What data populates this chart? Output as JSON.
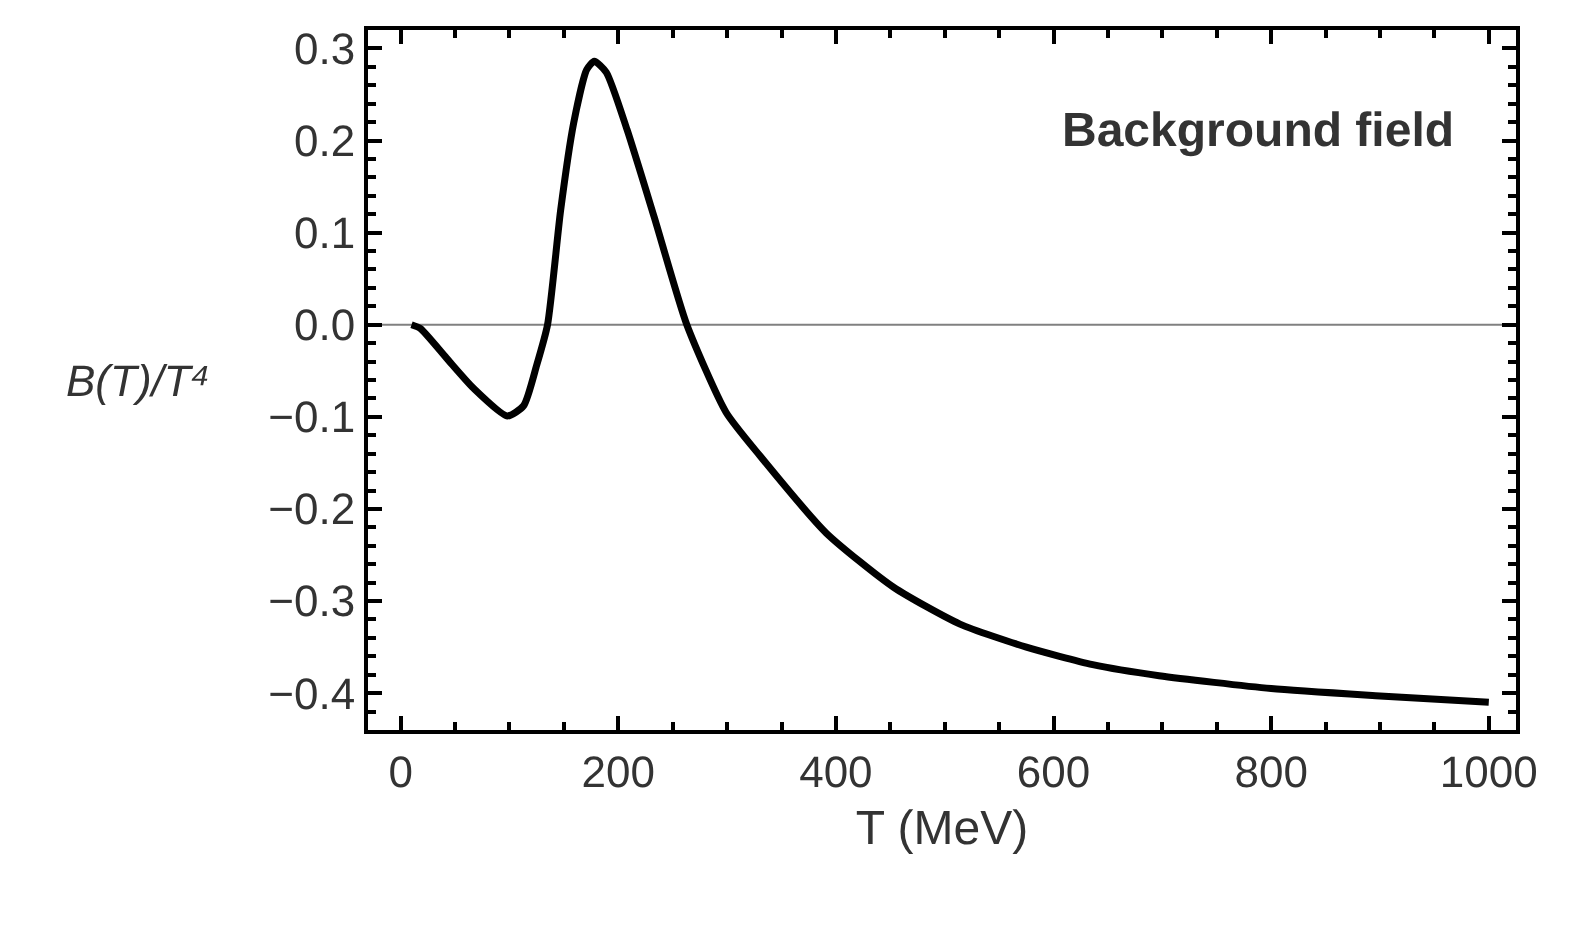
{
  "chart_data": {
    "type": "line",
    "xlabel": "T (MeV)",
    "ylabel": "B(T)/T⁴",
    "annotations": [
      "Background field"
    ],
    "x": [
      10,
      18,
      42,
      67,
      98,
      113,
      125,
      135,
      147,
      159,
      171,
      178,
      189,
      208,
      233,
      263,
      299,
      330,
      391,
      453,
      514,
      575,
      636,
      697,
      800,
      900,
      1000
    ],
    "series": [
      {
        "color": "#000000",
        "values": [
          0,
          -0.004,
          -0.036,
          -0.069,
          -0.099,
          -0.088,
          -0.044,
          0,
          0.124,
          0.219,
          0.277,
          0.286,
          0.274,
          0.212,
          0.117,
          0,
          -0.095,
          -0.142,
          -0.226,
          -0.285,
          -0.325,
          -0.35,
          -0.369,
          -0.381,
          -0.395,
          -0.403,
          -0.41
        ]
      }
    ],
    "xlim": [
      -30,
      1025
    ],
    "ylim": [
      -0.44,
      0.32
    ],
    "xticks": [
      0,
      200,
      400,
      600,
      800,
      1000
    ],
    "yticks": [
      {
        "value": -0.4,
        "label": "−0.4"
      },
      {
        "value": -0.3,
        "label": "−0.3"
      },
      {
        "value": -0.2,
        "label": "−0.2"
      },
      {
        "value": -0.1,
        "label": "−0.1"
      },
      {
        "value": 0,
        "label": "0.0"
      },
      0.1,
      0.2,
      0.3
    ],
    "ref_lines": [
      {
        "axis": "y",
        "value": 0,
        "color": "#808080"
      }
    ],
    "grid": false,
    "legend": false,
    "marker": "none",
    "line_style": "solid"
  }
}
